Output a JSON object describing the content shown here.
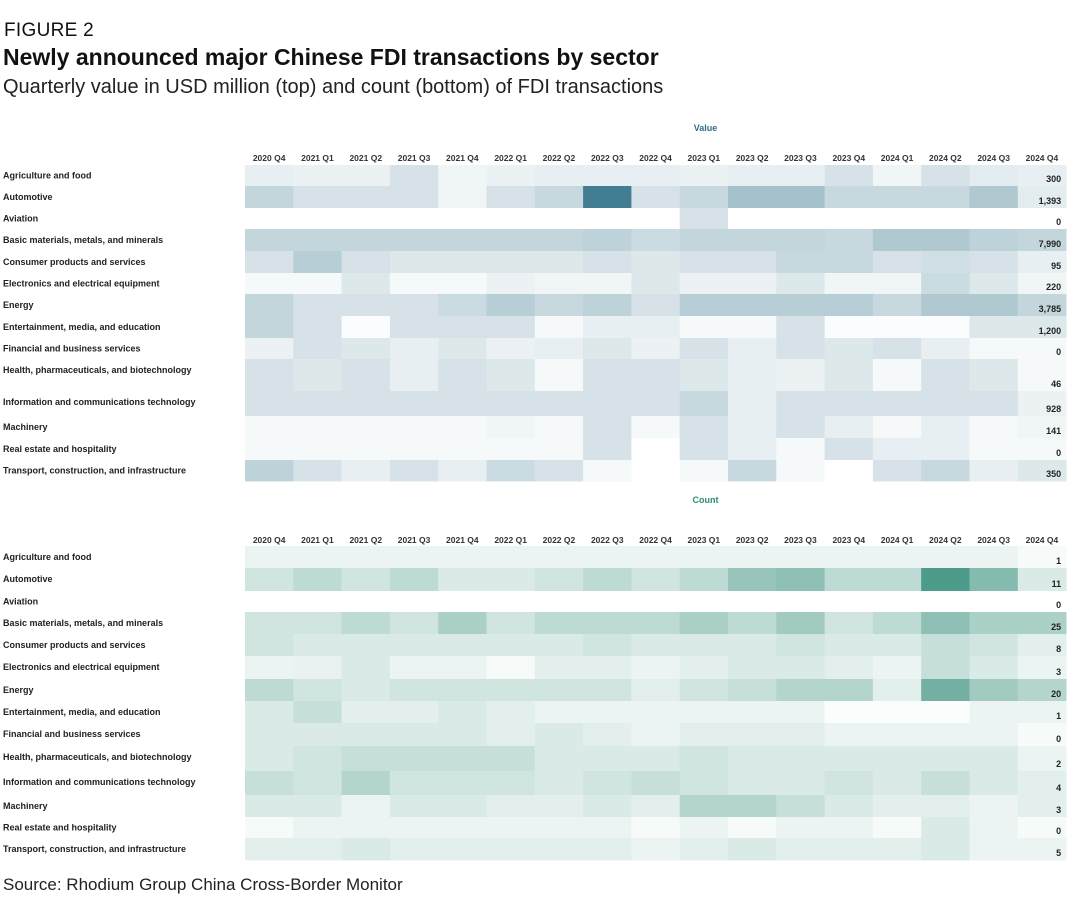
{
  "figure": {
    "label": "FIGURE 2",
    "title": "Newly announced major Chinese FDI transactions by sector",
    "subtitle": "Quarterly value in USD million (top) and count (bottom) of FDI transactions",
    "source": "Source: Rhodium Group China Cross-Border Monitor"
  },
  "colors": {
    "value_base": "#2e6f86",
    "count_base": "#2f8a76",
    "panel_title_value": "#2e6f86",
    "panel_title_count": "#2f8a76"
  },
  "chart_data": [
    {
      "type": "heatmap",
      "title": "Value",
      "quarters": [
        "2020 Q4",
        "2021 Q1",
        "2021 Q2",
        "2021 Q3",
        "2021 Q4",
        "2022 Q1",
        "2022 Q2",
        "2022 Q3",
        "2022 Q4",
        "2023 Q1",
        "2023 Q2",
        "2023 Q3",
        "2023 Q4",
        "2024 Q1",
        "2024 Q2",
        "2024 Q3",
        "2024 Q4"
      ],
      "sectors": [
        "Agriculture and food",
        "Automotive",
        "Aviation",
        "Basic materials, metals, and minerals",
        "Consumer products and services",
        "Electronics and electrical equipment",
        "Energy",
        "Entertainment, media, and education",
        "Financial and business services",
        "Health, pharmaceuticals, and biotechnology",
        "Information and communications technology",
        "Machinery",
        "Real estate and hospitality",
        "Transport, construction, and infrastructure"
      ],
      "intensity": [
        [
          0.12,
          0.1,
          0.1,
          0.22,
          0.08,
          0.1,
          0.12,
          0.12,
          0.12,
          0.1,
          0.12,
          0.12,
          0.22,
          0.08,
          0.22,
          0.15,
          0.12
        ],
        [
          0.32,
          0.22,
          0.22,
          0.22,
          0.08,
          0.22,
          0.3,
          1.0,
          0.22,
          0.3,
          0.48,
          0.48,
          0.3,
          0.3,
          0.3,
          0.42,
          0.15
        ],
        [
          0.0,
          0.0,
          0.0,
          0.0,
          0.0,
          0.0,
          0.0,
          0.0,
          0.0,
          0.22,
          0.0,
          0.0,
          0.0,
          0.0,
          0.0,
          0.0,
          0.0
        ],
        [
          0.32,
          0.32,
          0.32,
          0.32,
          0.32,
          0.32,
          0.32,
          0.35,
          0.28,
          0.32,
          0.32,
          0.32,
          0.3,
          0.42,
          0.42,
          0.35,
          0.32
        ],
        [
          0.22,
          0.38,
          0.22,
          0.18,
          0.18,
          0.18,
          0.18,
          0.22,
          0.18,
          0.22,
          0.22,
          0.3,
          0.3,
          0.22,
          0.25,
          0.22,
          0.12
        ],
        [
          0.05,
          0.05,
          0.18,
          0.05,
          0.05,
          0.1,
          0.08,
          0.08,
          0.18,
          0.1,
          0.1,
          0.18,
          0.08,
          0.08,
          0.28,
          0.18,
          0.08
        ],
        [
          0.32,
          0.22,
          0.22,
          0.22,
          0.28,
          0.38,
          0.3,
          0.35,
          0.22,
          0.38,
          0.38,
          0.38,
          0.38,
          0.3,
          0.42,
          0.42,
          0.32
        ],
        [
          0.32,
          0.22,
          0.02,
          0.22,
          0.22,
          0.22,
          0.05,
          0.12,
          0.12,
          0.05,
          0.05,
          0.22,
          0.02,
          0.02,
          0.02,
          0.18,
          0.18
        ],
        [
          0.1,
          0.22,
          0.18,
          0.12,
          0.18,
          0.1,
          0.12,
          0.18,
          0.1,
          0.22,
          0.12,
          0.22,
          0.18,
          0.22,
          0.12,
          0.05,
          0.05
        ],
        [
          0.22,
          0.18,
          0.22,
          0.12,
          0.22,
          0.18,
          0.05,
          0.22,
          0.22,
          0.18,
          0.12,
          0.1,
          0.18,
          0.05,
          0.22,
          0.18,
          0.05
        ],
        [
          0.22,
          0.22,
          0.22,
          0.22,
          0.22,
          0.22,
          0.22,
          0.22,
          0.22,
          0.3,
          0.12,
          0.22,
          0.22,
          0.22,
          0.22,
          0.22,
          0.1
        ],
        [
          0.05,
          0.05,
          0.05,
          0.05,
          0.05,
          0.08,
          0.05,
          0.22,
          0.05,
          0.22,
          0.12,
          0.22,
          0.12,
          0.05,
          0.12,
          0.05,
          0.08
        ],
        [
          0.05,
          0.05,
          0.05,
          0.05,
          0.05,
          0.05,
          0.05,
          0.22,
          0.0,
          0.22,
          0.12,
          0.05,
          0.22,
          0.12,
          0.12,
          0.05,
          0.05
        ],
        [
          0.35,
          0.22,
          0.12,
          0.22,
          0.12,
          0.28,
          0.22,
          0.05,
          0.0,
          0.05,
          0.3,
          0.05,
          0.0,
          0.22,
          0.3,
          0.12,
          0.18
        ]
      ],
      "latest_values": [
        "300",
        "1,393",
        "0",
        "7,990",
        "95",
        "220",
        "3,785",
        "1,200",
        "0",
        "46",
        "928",
        "141",
        "0",
        "350"
      ]
    },
    {
      "type": "heatmap",
      "title": "Count",
      "quarters": [
        "2020 Q4",
        "2021 Q1",
        "2021 Q2",
        "2021 Q3",
        "2021 Q4",
        "2022 Q1",
        "2022 Q2",
        "2022 Q3",
        "2022 Q4",
        "2023 Q1",
        "2023 Q2",
        "2023 Q3",
        "2023 Q4",
        "2024 Q1",
        "2024 Q2",
        "2024 Q3",
        "2024 Q4"
      ],
      "sectors": [
        "Agriculture and food",
        "Automotive",
        "Aviation",
        "Basic materials, metals, and minerals",
        "Consumer products and services",
        "Electronics and electrical equipment",
        "Energy",
        "Entertainment, media, and education",
        "Financial and business services",
        "Health, pharmaceuticals, and biotechnology",
        "Information and communications technology",
        "Machinery",
        "Real estate and hospitality",
        "Transport, construction, and infrastructure"
      ],
      "intensity": [
        [
          0.1,
          0.1,
          0.1,
          0.1,
          0.1,
          0.1,
          0.1,
          0.1,
          0.1,
          0.1,
          0.1,
          0.1,
          0.1,
          0.1,
          0.1,
          0.1,
          0.05
        ],
        [
          0.25,
          0.35,
          0.25,
          0.35,
          0.2,
          0.2,
          0.25,
          0.35,
          0.25,
          0.35,
          0.55,
          0.6,
          0.35,
          0.35,
          0.95,
          0.65,
          0.2
        ],
        [
          0.0,
          0.0,
          0.0,
          0.0,
          0.0,
          0.0,
          0.0,
          0.0,
          0.0,
          0.0,
          0.0,
          0.0,
          0.0,
          0.0,
          0.0,
          0.0,
          0.0
        ],
        [
          0.25,
          0.25,
          0.35,
          0.25,
          0.45,
          0.25,
          0.35,
          0.35,
          0.35,
          0.45,
          0.35,
          0.5,
          0.25,
          0.35,
          0.6,
          0.45,
          0.45
        ],
        [
          0.25,
          0.2,
          0.2,
          0.2,
          0.2,
          0.2,
          0.2,
          0.25,
          0.2,
          0.2,
          0.2,
          0.25,
          0.2,
          0.2,
          0.3,
          0.25,
          0.15
        ],
        [
          0.1,
          0.12,
          0.2,
          0.1,
          0.1,
          0.05,
          0.15,
          0.15,
          0.1,
          0.15,
          0.2,
          0.2,
          0.15,
          0.1,
          0.3,
          0.2,
          0.1
        ],
        [
          0.35,
          0.25,
          0.2,
          0.25,
          0.25,
          0.25,
          0.25,
          0.25,
          0.15,
          0.25,
          0.3,
          0.4,
          0.4,
          0.15,
          0.75,
          0.5,
          0.4
        ],
        [
          0.2,
          0.3,
          0.15,
          0.15,
          0.2,
          0.15,
          0.1,
          0.1,
          0.1,
          0.1,
          0.1,
          0.1,
          0.02,
          0.02,
          0.02,
          0.1,
          0.1
        ],
        [
          0.2,
          0.2,
          0.2,
          0.2,
          0.2,
          0.15,
          0.2,
          0.15,
          0.1,
          0.15,
          0.15,
          0.15,
          0.1,
          0.1,
          0.1,
          0.1,
          0.05
        ],
        [
          0.2,
          0.25,
          0.3,
          0.3,
          0.3,
          0.3,
          0.2,
          0.2,
          0.2,
          0.25,
          0.2,
          0.2,
          0.2,
          0.2,
          0.2,
          0.2,
          0.1
        ],
        [
          0.3,
          0.25,
          0.4,
          0.25,
          0.25,
          0.25,
          0.2,
          0.25,
          0.3,
          0.25,
          0.2,
          0.2,
          0.25,
          0.2,
          0.3,
          0.2,
          0.15
        ],
        [
          0.2,
          0.2,
          0.1,
          0.2,
          0.2,
          0.15,
          0.15,
          0.2,
          0.15,
          0.4,
          0.4,
          0.3,
          0.2,
          0.15,
          0.15,
          0.1,
          0.15
        ],
        [
          0.05,
          0.1,
          0.1,
          0.1,
          0.1,
          0.1,
          0.1,
          0.1,
          0.05,
          0.1,
          0.05,
          0.1,
          0.1,
          0.05,
          0.2,
          0.1,
          0.05
        ],
        [
          0.15,
          0.15,
          0.2,
          0.15,
          0.15,
          0.15,
          0.15,
          0.15,
          0.1,
          0.15,
          0.2,
          0.15,
          0.15,
          0.15,
          0.2,
          0.1,
          0.1
        ]
      ],
      "latest_values": [
        "1",
        "11",
        "0",
        "25",
        "8",
        "3",
        "20",
        "1",
        "0",
        "2",
        "4",
        "3",
        "0",
        "5"
      ]
    }
  ]
}
